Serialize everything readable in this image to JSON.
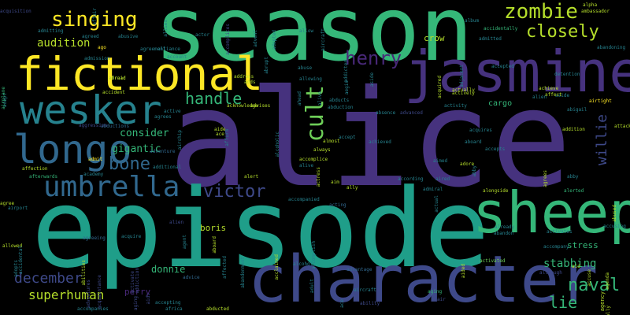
{
  "words": {
    "alice": "alice",
    "season": "season",
    "episode": "episode",
    "jasmine": "jasmine",
    "character": "character",
    "fictional": "fictional",
    "sheep": "sheep",
    "wesker": "wesker",
    "longo": "longo",
    "umbrella": "umbrella",
    "zombie": "zombie",
    "singing": "singing",
    "closely": "closely",
    "henry": "henry",
    "cult": "cult",
    "handle": "handle",
    "bone": "bone",
    "victor": "victor",
    "willie": "willie",
    "naval": "naval",
    "december": "december",
    "superhuman": "superhuman",
    "audition": "audition",
    "gigantic": "gigantic",
    "stabbing": "stabbing",
    "lie": "lie",
    "consider": "consider",
    "donnie": "donnie",
    "crow": "crow",
    "cargo": "cargo",
    "boris": "boris",
    "perry": "perry",
    "stress": "stress",
    "abigail": "abigail",
    "ambassador": "ambassador",
    "alpha": "alpha",
    "accidentally": "accidentally",
    "according": "according",
    "acquires": "acquires",
    "addition": "addition",
    "airtight": "airtight",
    "alien": "alien",
    "alcohol": "alcohol",
    "alerted": "alerted",
    "accept": "accept",
    "advantage": "advantage",
    "aircraft": "aircraft",
    "aging": "aging",
    "accepting": "accepting",
    "accompanies": "accompanies",
    "abducted": "abducted",
    "ability": "ability",
    "activated": "activated",
    "actively": "actively",
    "abroad": "abroad",
    "aboard": "aboard",
    "adopt": "adopt",
    "alongside": "alongside",
    "abandon": "abandon",
    "abandoning": "abandoning",
    "ahead": "ahead",
    "allowed": "allowed",
    "already": "already",
    "although": "although",
    "accompanied": "accompanied",
    "acting": "acting",
    "admiral": "admiral",
    "adopted": "adopted",
    "abrupt": "abrupt",
    "absence": "absence",
    "advanced": "advanced",
    "almost": "almost",
    "aimed": "aimed",
    "alert": "alert",
    "ally": "ally",
    "agreed": "agreed",
    "agent": "agent",
    "admitting": "admitting",
    "afterwards": "afterwards",
    "affection": "affection",
    "agreeing": "agreeing",
    "alive": "alive",
    "aired": "aired",
    "actual": "actual",
    "air": "air",
    "accuse": "accuse",
    "accident": "accident",
    "affair": "affair",
    "address": "address",
    "advice": "advice",
    "accepts": "accepts",
    "achieve": "achieve",
    "aside": "aside",
    "activates": "activates",
    "accompany": "accompany",
    "academy": "academy",
    "ago": "ago",
    "aid": "aid",
    "attack": "attack",
    "adult": "adult",
    "admit": "admit",
    "ace": "ace",
    "abductions": "abductions",
    "abilities": "abilities",
    "aim": "aim",
    "agency": "agency",
    "accomplice": "accomplice",
    "abducts": "abducts",
    "abduction": "abduction",
    "acquire": "acquire",
    "advent": "advent",
    "adventure": "adventure",
    "additional": "additional",
    "accidental": "accidental",
    "activate": "activate",
    "afraid": "afraid",
    "always": "always",
    "admission": "admission",
    "airplane": "airplane",
    "allowing": "allowing",
    "allies": "allies",
    "agrees": "agrees",
    "aircraft2": "aircraft",
    "active": "active",
    "alliance": "alliance",
    "addicted": "addicted",
    "adds": "adds",
    "adjacent": "adjacent",
    "advises": "advises",
    "acknowledge": "acknowledge",
    "abandonment": "abandonment",
    "acclaimed": "acclaimed",
    "addiction": "addiction",
    "adventures": "adventures",
    "africa": "africa",
    "aggression": "aggression",
    "aging2": "aging",
    "agree": "agree",
    "aids": "aids",
    "aide": "aide",
    "airport": "airport",
    "album": "album",
    "acquaintance": "acquaintance",
    "actor": "actor",
    "adopts": "adopts",
    "accomplices": "accomplices",
    "detention": "detention",
    "abuse": "abuse",
    "abusive": "abusive",
    "admitted": "admitted",
    "affected": "affected",
    "aided": "aided",
    "agenda": "agenda",
    "alcoholic": "alcoholic",
    "accepted": "accepted",
    "abused": "abused",
    "adore": "adore",
    "airship": "airship",
    "affirm": "affirm",
    "abby": "abby",
    "accusing": "accusing",
    "actress": "actress",
    "ally2": "ally",
    "aside2": "aside",
    "aegis": "aegis",
    "agreement": "agreement",
    "allow": "allow",
    "accomplish": "accomplish",
    "account": "account",
    "agrees2": "agrees",
    "acquired": "acquired",
    "activity": "activity",
    "ace2": "ace",
    "abby2": "abby",
    "achieved": "achieved",
    "acquisition": "acquisition",
    "aboard2": "aboard",
    "affect": "affect",
    "alien2": "alien",
    "actually": "actually"
  },
  "colors": {
    "purple": "#46327e",
    "indigo": "#3e4989",
    "blue": "#31688e",
    "teal": "#26828e",
    "seagreen": "#1f9e89",
    "green": "#35b779",
    "lime": "#6ece58",
    "yellowgreen": "#b5de2b",
    "yellow": "#fde725",
    "darkpurple": "#482878",
    "deepteal": "#277f8e"
  }
}
